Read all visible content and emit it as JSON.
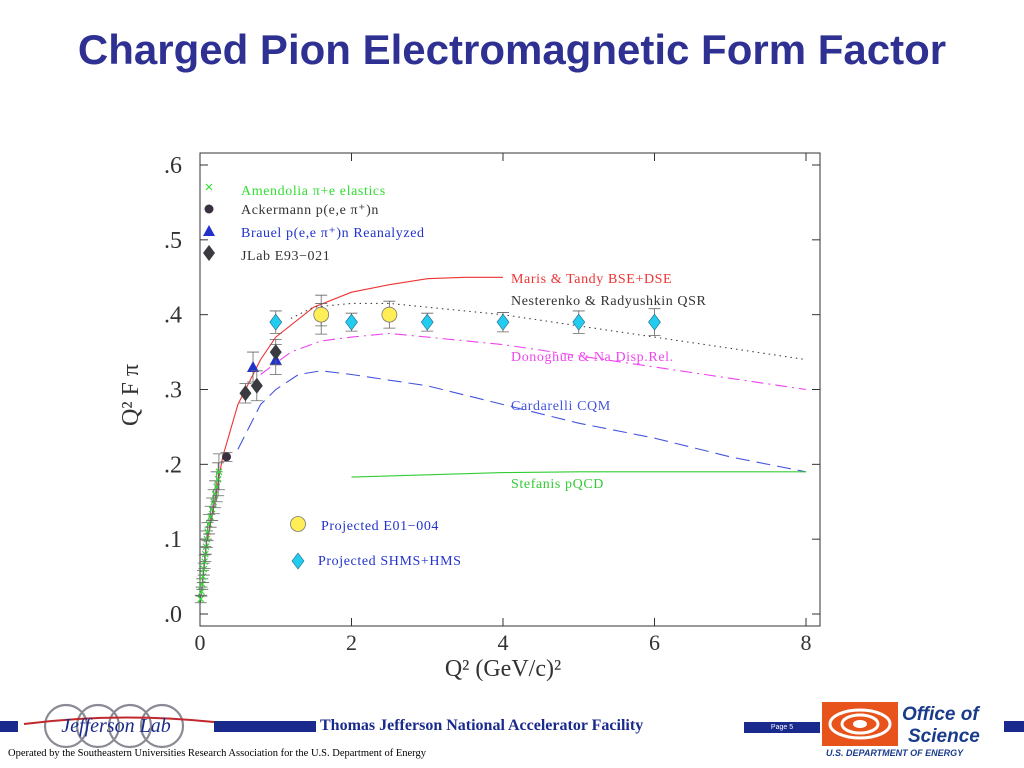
{
  "page": {
    "title": "Charged Pion Electromagnetic Form Factor"
  },
  "footer": {
    "lab_logo_text": "Jefferson Lab",
    "facility": "Thomas Jefferson National Accelerator Facility",
    "page_label": "Page 5",
    "doe_line1": "Office of",
    "doe_line2": "Science",
    "doe_line3": "U.S. DEPARTMENT OF ENERGY",
    "operated_by": "Operated by the Southeastern Universities Research Association for the U.S. Department of  Energy",
    "colors": {
      "navy": "#1a2a8c",
      "doe_orange": "#e8531c",
      "doe_blue": "#1a3b8c"
    }
  },
  "chart_data": {
    "type": "scatter",
    "xlabel": "Q² (GeV/c)²",
    "ylabel": "Q² F π",
    "xlim": [
      0,
      8
    ],
    "ylim": [
      0,
      0.6
    ],
    "x_ticks": [
      "0",
      "2",
      "4",
      "6",
      "8"
    ],
    "y_ticks": [
      ".0",
      ".1",
      ".2",
      ".3",
      ".4",
      ".5",
      ".6"
    ],
    "grid": false,
    "series": [
      {
        "name": "Amendolia π+e elastics",
        "kind": "points",
        "marker": "x",
        "color": "#33dd33",
        "points": [
          [
            0.01,
            0.02
          ],
          [
            0.02,
            0.03
          ],
          [
            0.03,
            0.04
          ],
          [
            0.04,
            0.05
          ],
          [
            0.05,
            0.06
          ],
          [
            0.06,
            0.07
          ],
          [
            0.07,
            0.08
          ],
          [
            0.08,
            0.09
          ],
          [
            0.09,
            0.1
          ],
          [
            0.1,
            0.11
          ],
          [
            0.12,
            0.12
          ],
          [
            0.14,
            0.13
          ],
          [
            0.16,
            0.14
          ],
          [
            0.18,
            0.15
          ],
          [
            0.2,
            0.16
          ],
          [
            0.22,
            0.17
          ],
          [
            0.24,
            0.18
          ],
          [
            0.25,
            0.19
          ]
        ],
        "errors": [
          0.005,
          0.006,
          0.007,
          0.008,
          0.008,
          0.009,
          0.01,
          0.01,
          0.011,
          0.012,
          0.013,
          0.014,
          0.015,
          0.016,
          0.018,
          0.02,
          0.022,
          0.024
        ]
      },
      {
        "name": "Ackermann p(e,e π⁺)n",
        "kind": "points",
        "marker": "dot",
        "color": "#3a3040",
        "points": [
          [
            0.35,
            0.21
          ]
        ],
        "errors": [
          0.006
        ]
      },
      {
        "name": "Brauel p(e,e π⁺)n Reanalyzed",
        "kind": "points",
        "marker": "triangle",
        "color": "#2233cc",
        "points": [
          [
            0.7,
            0.33
          ],
          [
            1.0,
            0.34
          ]
        ],
        "errors": [
          0.02,
          0.02
        ]
      },
      {
        "name": "JLab E93−021",
        "kind": "points",
        "marker": "diamond",
        "color": "#3a3a40",
        "points": [
          [
            0.6,
            0.295
          ],
          [
            0.75,
            0.305
          ],
          [
            1.0,
            0.35
          ],
          [
            1.6,
            0.4
          ]
        ],
        "errors": [
          0.013,
          0.02,
          0.017,
          0.026
        ]
      },
      {
        "name": "Projected E01−004",
        "kind": "points",
        "marker": "circle",
        "color": "#ffee55",
        "points": [
          [
            1.6,
            0.4
          ],
          [
            2.5,
            0.4
          ]
        ],
        "errors": [
          0.015,
          0.018
        ]
      },
      {
        "name": "Projected SHMS+HMS",
        "kind": "points",
        "marker": "diamond-open",
        "color": "#22ccee",
        "points": [
          [
            1.0,
            0.39
          ],
          [
            2.0,
            0.39
          ],
          [
            3.0,
            0.39
          ],
          [
            4.0,
            0.39
          ],
          [
            5.0,
            0.39
          ],
          [
            6.0,
            0.39
          ]
        ],
        "errors": [
          0.015,
          0.012,
          0.012,
          0.013,
          0.015,
          0.018
        ]
      },
      {
        "name": "Maris & Tandy BSE+DSE",
        "kind": "curve",
        "dash": "solid",
        "color": "#ee3333",
        "points": [
          [
            0.1,
            0.1
          ],
          [
            0.3,
            0.21
          ],
          [
            0.5,
            0.28
          ],
          [
            0.8,
            0.34
          ],
          [
            1.0,
            0.37
          ],
          [
            1.5,
            0.41
          ],
          [
            2.0,
            0.43
          ],
          [
            2.5,
            0.44
          ],
          [
            3.0,
            0.448
          ],
          [
            3.5,
            0.45
          ],
          [
            4.0,
            0.45
          ]
        ]
      },
      {
        "name": "Nesterenko & Radyushkin QSR",
        "kind": "curve",
        "dash": "dotted",
        "color": "#444444",
        "points": [
          [
            1.2,
            0.395
          ],
          [
            1.5,
            0.41
          ],
          [
            2.0,
            0.415
          ],
          [
            2.5,
            0.415
          ],
          [
            3.0,
            0.41
          ],
          [
            4.0,
            0.4
          ],
          [
            5.0,
            0.385
          ],
          [
            6.0,
            0.37
          ],
          [
            7.0,
            0.355
          ],
          [
            8.0,
            0.34
          ]
        ]
      },
      {
        "name": "Donoghue & Na Disp.Rel.",
        "kind": "curve",
        "dash": "dashdot",
        "color": "#ee44ee",
        "points": [
          [
            0.8,
            0.32
          ],
          [
            1.2,
            0.35
          ],
          [
            1.6,
            0.365
          ],
          [
            2.0,
            0.37
          ],
          [
            2.5,
            0.375
          ],
          [
            3.0,
            0.37
          ],
          [
            4.0,
            0.36
          ],
          [
            5.0,
            0.345
          ],
          [
            6.0,
            0.33
          ],
          [
            7.0,
            0.315
          ],
          [
            8.0,
            0.3
          ]
        ]
      },
      {
        "name": "Cardarelli CQM",
        "kind": "curve",
        "dash": "dashed",
        "color": "#4455dd",
        "points": [
          [
            0.5,
            0.22
          ],
          [
            0.8,
            0.28
          ],
          [
            1.0,
            0.3
          ],
          [
            1.3,
            0.32
          ],
          [
            1.6,
            0.325
          ],
          [
            2.0,
            0.32
          ],
          [
            3.0,
            0.305
          ],
          [
            4.0,
            0.28
          ],
          [
            5.0,
            0.255
          ],
          [
            6.0,
            0.235
          ],
          [
            7.0,
            0.21
          ],
          [
            8.0,
            0.19
          ]
        ]
      },
      {
        "name": "Stefanis pQCD",
        "kind": "curve",
        "dash": "solid",
        "color": "#33cc33",
        "points": [
          [
            2.0,
            0.183
          ],
          [
            3.0,
            0.186
          ],
          [
            4.0,
            0.189
          ],
          [
            5.0,
            0.19
          ],
          [
            6.0,
            0.19
          ],
          [
            7.0,
            0.19
          ],
          [
            8.0,
            0.19
          ]
        ]
      }
    ]
  }
}
